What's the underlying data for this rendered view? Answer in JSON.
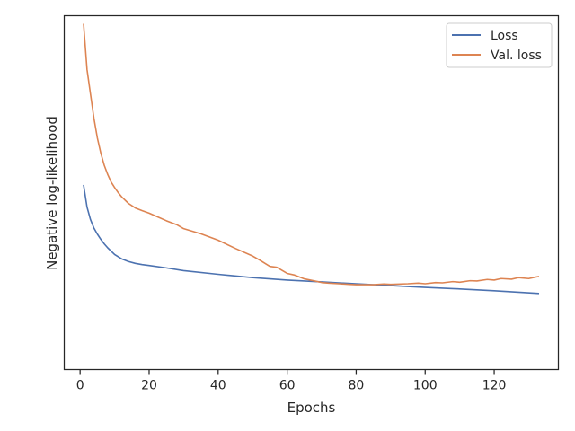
{
  "chart_data": {
    "type": "line",
    "title": "",
    "xlabel": "Epochs",
    "ylabel": "Negative log-likelihood",
    "xlim": [
      -4.6,
      138.6
    ],
    "ylim": [
      0,
      1
    ],
    "y_tick_labels_shown": false,
    "x_ticks": [
      0,
      20,
      40,
      60,
      80,
      100,
      120
    ],
    "x_tick_labels": [
      "0",
      "20",
      "40",
      "60",
      "80",
      "100",
      "120"
    ],
    "grid": false,
    "legend": {
      "position": "top-right",
      "entries": [
        "Loss",
        "Val. loss"
      ]
    },
    "series": [
      {
        "name": "Loss",
        "color": "#4c72b0",
        "x": [
          1,
          2,
          3,
          4,
          5,
          6,
          7,
          8,
          10,
          12,
          14,
          16,
          18,
          20,
          25,
          30,
          40,
          50,
          60,
          70,
          80,
          90,
          100,
          110,
          120,
          133
        ],
        "y": [
          0.471,
          0.398,
          0.357,
          0.329,
          0.309,
          0.292,
          0.277,
          0.264,
          0.242,
          0.228,
          0.219,
          0.213,
          0.209,
          0.206,
          0.198,
          0.189,
          0.177,
          0.166,
          0.158,
          0.152,
          0.146,
          0.14,
          0.134,
          0.129,
          0.123,
          0.114
        ]
      },
      {
        "name": "Val. loss",
        "color": "#dd8452",
        "x": [
          1,
          2,
          3,
          4,
          5,
          6,
          7,
          8,
          9,
          10,
          11,
          12,
          14,
          16,
          18,
          20,
          22,
          25,
          28,
          30,
          35,
          40,
          45,
          50,
          52,
          55,
          57,
          60,
          62,
          65,
          68,
          70,
          72,
          75,
          78,
          80,
          85,
          88,
          90,
          95,
          98,
          100,
          103,
          105,
          108,
          110,
          113,
          115,
          118,
          120,
          122,
          125,
          127,
          130,
          132,
          133
        ],
        "y": [
          1.0,
          0.85,
          0.77,
          0.69,
          0.625,
          0.575,
          0.535,
          0.505,
          0.48,
          0.462,
          0.446,
          0.432,
          0.41,
          0.395,
          0.386,
          0.378,
          0.368,
          0.353,
          0.34,
          0.327,
          0.31,
          0.289,
          0.262,
          0.237,
          0.224,
          0.203,
          0.2,
          0.18,
          0.175,
          0.162,
          0.155,
          0.15,
          0.148,
          0.146,
          0.144,
          0.143,
          0.143,
          0.145,
          0.144,
          0.146,
          0.148,
          0.146,
          0.15,
          0.149,
          0.153,
          0.151,
          0.156,
          0.155,
          0.16,
          0.158,
          0.163,
          0.161,
          0.166,
          0.163,
          0.168,
          0.17
        ]
      }
    ]
  }
}
